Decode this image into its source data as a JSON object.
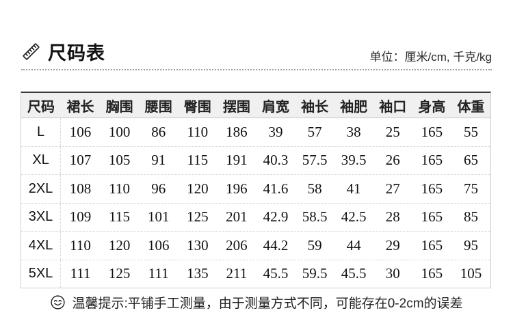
{
  "page": {
    "title": "尺码表",
    "unit_note": "单位：厘米/cm, 千克/kg",
    "tip": "温馨提示:平铺手工测量，由于测量方式不同，可能存在0-2cm的误差"
  },
  "icons": {
    "title_icon": "ruler-icon",
    "tip_icon": "smiley-icon"
  },
  "colors": {
    "background": "#ffffff",
    "table_top_border": "#3a3a3a",
    "table_border": "#cccccc",
    "dashed_line": "#d8d8d8",
    "header_bg": "#f0f0f0",
    "text": "#111111"
  },
  "table": {
    "headers": [
      "尺码",
      "裙长",
      "胸围",
      "腰围",
      "臀围",
      "摆围",
      "肩宽",
      "袖长",
      "袖肥",
      "袖口",
      "身高",
      "体重"
    ],
    "rows": [
      {
        "size": "L",
        "values": [
          "106",
          "100",
          "86",
          "110",
          "186",
          "39",
          "57",
          "38",
          "25",
          "165",
          "55"
        ]
      },
      {
        "size": "XL",
        "values": [
          "107",
          "105",
          "91",
          "115",
          "191",
          "40.3",
          "57.5",
          "39.5",
          "26",
          "165",
          "65"
        ]
      },
      {
        "size": "2XL",
        "values": [
          "108",
          "110",
          "96",
          "120",
          "196",
          "41.6",
          "58",
          "41",
          "27",
          "165",
          "75"
        ]
      },
      {
        "size": "3XL",
        "values": [
          "109",
          "115",
          "101",
          "125",
          "201",
          "42.9",
          "58.5",
          "42.5",
          "28",
          "165",
          "85"
        ]
      },
      {
        "size": "4XL",
        "values": [
          "110",
          "120",
          "106",
          "130",
          "206",
          "44.2",
          "59",
          "44",
          "29",
          "165",
          "95"
        ]
      },
      {
        "size": "5XL",
        "values": [
          "111",
          "125",
          "111",
          "135",
          "211",
          "45.5",
          "59.5",
          "45.5",
          "30",
          "165",
          "105"
        ]
      }
    ]
  }
}
